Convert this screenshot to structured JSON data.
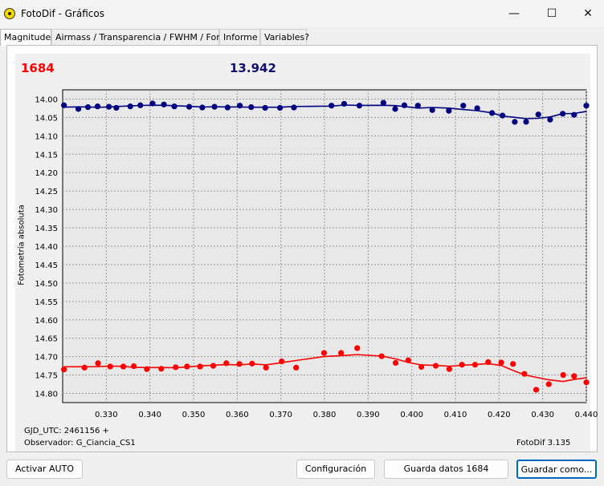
{
  "window": {
    "title": "FotoDif - Gráficos",
    "min_label": "—",
    "max_label": "☐",
    "close_label": "✕"
  },
  "tabs": [
    "Magnitudes",
    "Airmass / Transparencia / FWHM / Fondo",
    "Informe",
    "Variables?"
  ],
  "header": {
    "red_value": "1684",
    "blue_value": "13.942"
  },
  "chart_data": {
    "type": "scatter",
    "ylabel": "Fotometría absoluta",
    "y_inverted": true,
    "ylim": [
      13.975,
      14.825
    ],
    "xlim": [
      0.32,
      0.44
    ],
    "y_ticks": [
      "14.00",
      "14.05",
      "14.10",
      "14.15",
      "14.20",
      "14.25",
      "14.30",
      "14.35",
      "14.40",
      "14.45",
      "14.50",
      "14.55",
      "14.60",
      "14.65",
      "14.70",
      "14.75",
      "14.80"
    ],
    "x_ticks": [
      "0.330",
      "0.340",
      "0.350",
      "0.360",
      "0.370",
      "0.380",
      "0.390",
      "0.400",
      "0.410",
      "0.420",
      "0.430",
      "0.440"
    ],
    "grid": true,
    "series": [
      {
        "color": "#000080",
        "points": [
          [
            0.3203,
            14.017
          ],
          [
            0.3236,
            14.027
          ],
          [
            0.3258,
            14.022
          ],
          [
            0.328,
            14.02
          ],
          [
            0.3306,
            14.021
          ],
          [
            0.3323,
            14.024
          ],
          [
            0.3355,
            14.02
          ],
          [
            0.3378,
            14.017
          ],
          [
            0.3406,
            14.012
          ],
          [
            0.3432,
            14.015
          ],
          [
            0.3456,
            14.02
          ],
          [
            0.349,
            14.021
          ],
          [
            0.352,
            14.023
          ],
          [
            0.3548,
            14.021
          ],
          [
            0.3578,
            14.023
          ],
          [
            0.3606,
            14.018
          ],
          [
            0.3632,
            14.022
          ],
          [
            0.3664,
            14.024
          ],
          [
            0.3698,
            14.024
          ],
          [
            0.373,
            14.023
          ],
          [
            0.3816,
            14.018
          ],
          [
            0.3845,
            14.013
          ],
          [
            0.388,
            14.018
          ],
          [
            0.3935,
            14.01
          ],
          [
            0.3962,
            14.027
          ],
          [
            0.3983,
            14.017
          ],
          [
            0.4014,
            14.018
          ],
          [
            0.4047,
            14.03
          ],
          [
            0.4085,
            14.032
          ],
          [
            0.4118,
            14.018
          ],
          [
            0.415,
            14.025
          ],
          [
            0.4184,
            14.038
          ],
          [
            0.4208,
            14.045
          ],
          [
            0.4236,
            14.062
          ],
          [
            0.4262,
            14.062
          ],
          [
            0.429,
            14.042
          ],
          [
            0.4317,
            14.056
          ],
          [
            0.4346,
            14.04
          ],
          [
            0.4372,
            14.043
          ],
          [
            0.44,
            14.018
          ]
        ]
      },
      {
        "color": "#ff0000",
        "points": [
          [
            0.3203,
            14.735
          ],
          [
            0.325,
            14.73
          ],
          [
            0.3281,
            14.718
          ],
          [
            0.3309,
            14.727
          ],
          [
            0.3339,
            14.727
          ],
          [
            0.3363,
            14.726
          ],
          [
            0.3393,
            14.734
          ],
          [
            0.3426,
            14.733
          ],
          [
            0.3459,
            14.729
          ],
          [
            0.3485,
            14.727
          ],
          [
            0.3515,
            14.727
          ],
          [
            0.3545,
            14.725
          ],
          [
            0.3575,
            14.718
          ],
          [
            0.3605,
            14.72
          ],
          [
            0.3634,
            14.719
          ],
          [
            0.3666,
            14.73
          ],
          [
            0.3702,
            14.713
          ],
          [
            0.3735,
            14.73
          ],
          [
            0.3799,
            14.69
          ],
          [
            0.3838,
            14.69
          ],
          [
            0.3875,
            14.677
          ],
          [
            0.3931,
            14.699
          ],
          [
            0.3963,
            14.717
          ],
          [
            0.3992,
            14.71
          ],
          [
            0.4022,
            14.728
          ],
          [
            0.4055,
            14.725
          ],
          [
            0.4086,
            14.734
          ],
          [
            0.4115,
            14.722
          ],
          [
            0.4145,
            14.722
          ],
          [
            0.4175,
            14.715
          ],
          [
            0.4205,
            14.716
          ],
          [
            0.4232,
            14.72
          ],
          [
            0.4258,
            14.747
          ],
          [
            0.4285,
            14.79
          ],
          [
            0.4314,
            14.775
          ],
          [
            0.4347,
            14.75
          ],
          [
            0.4372,
            14.753
          ],
          [
            0.44,
            14.77
          ]
        ]
      }
    ]
  },
  "footer": {
    "gjd": "GJD_UTC: 2461156 +",
    "observer": "Observador: G_Ciancia_CS1",
    "version": "FotoDif 3.135"
  },
  "buttons": {
    "activar": "Activar AUTO",
    "config": "Configuración",
    "guardar_datos": "Guarda datos 1684",
    "guardar_como": "Guardar como..."
  }
}
